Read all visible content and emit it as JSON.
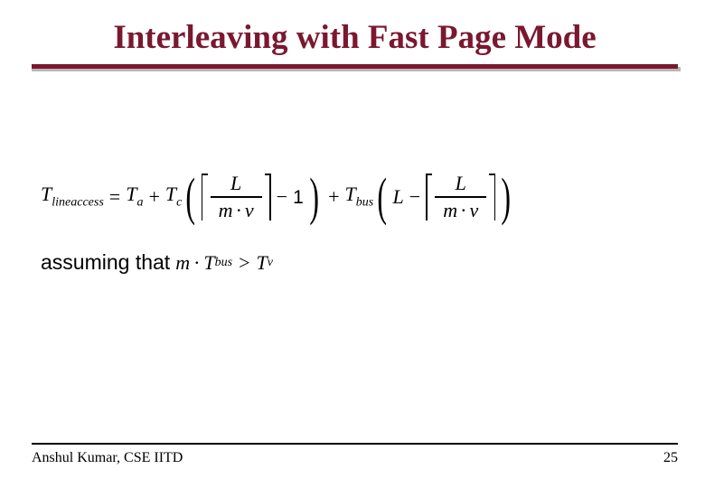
{
  "title": "Interleaving with Fast Page Mode",
  "colors": {
    "title": "#7a1830",
    "rule": "#7a1830",
    "rule_shadow": "#b7b7b7",
    "text": "#000000",
    "background": "#ffffff",
    "footer_rule": "#000000"
  },
  "formula": {
    "lhs_var": "T",
    "lhs_sub": "lineaccess",
    "t1_var": "T",
    "t1_sub": "a",
    "t2_var": "T",
    "t2_sub": "c",
    "frac_num": "L",
    "frac_den_left": "m",
    "frac_den_right": "ν",
    "minus_one": "1",
    "t3_var": "T",
    "t3_sub": "bus",
    "outer_L": "L"
  },
  "assumption": {
    "label": "assuming that ",
    "m": "m",
    "tbus_var": "T",
    "tbus_sub": "bus",
    "gt": ">",
    "tv_var": "T",
    "tv_sub": "ν"
  },
  "footer": {
    "author": "Anshul Kumar, CSE IITD",
    "page": "25"
  }
}
